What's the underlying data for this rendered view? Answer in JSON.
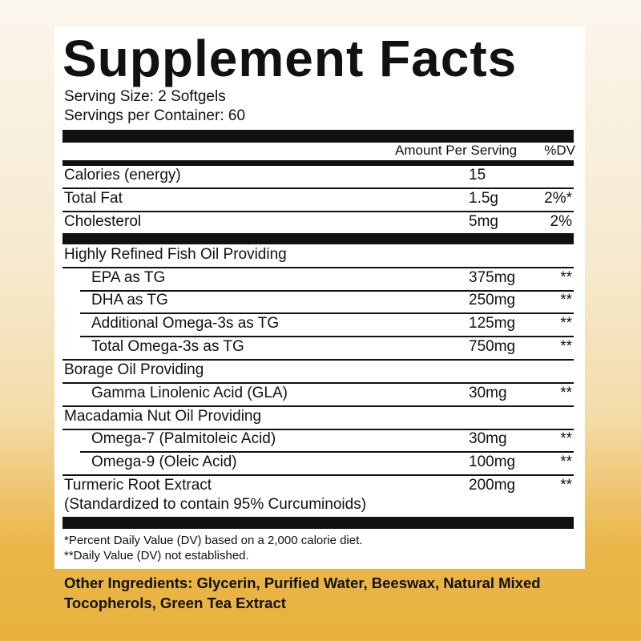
{
  "header": {
    "title": "Supplement Facts"
  },
  "serving": {
    "size": "Serving Size: 2 Softgels",
    "per_container": "Servings per Container: 60"
  },
  "table": {
    "header": {
      "amount": "Amount Per Serving",
      "dv": "%DV"
    },
    "rows": [
      {
        "label": "Calories (energy)",
        "amount": "15"
      },
      {
        "label": "Total Fat",
        "amount": "1.5g",
        "dv": "2%*"
      },
      {
        "label": "Cholesterol",
        "amount": "5mg",
        "dv": "2%"
      },
      {
        "label": "Highly Refined Fish Oil Providing"
      },
      {
        "label": "EPA as TG",
        "amount": "375mg",
        "dv": "**"
      },
      {
        "label": "DHA as TG",
        "amount": "250mg",
        "dv": "**"
      },
      {
        "label": "Additional Omega-3s as TG",
        "amount": "125mg",
        "dv": "**"
      },
      {
        "label": "Total Omega-3s as TG",
        "amount": "750mg",
        "dv": "**"
      },
      {
        "label": "Borage Oil Providing"
      },
      {
        "label": "Gamma Linolenic Acid (GLA)",
        "amount": "30mg",
        "dv": "**"
      },
      {
        "label": "Macadamia Nut Oil Providing"
      },
      {
        "label": "Omega-7 (Palmitoleic Acid)",
        "amount": "30mg",
        "dv": "**"
      },
      {
        "label": "Omega-9 (Oleic Acid)",
        "amount": "100mg",
        "dv": "**"
      },
      {
        "label": "Turmeric Root Extract",
        "note": "(Standardized to contain 95% Curcuminoids)",
        "amount": "200mg",
        "dv": "**"
      }
    ]
  },
  "footnotes": [
    "*Percent Daily Value (DV) based on a 2,000 calorie diet.",
    "**Daily Value (DV) not established."
  ],
  "other_ingredients": [
    "Other Ingredients: Glycerin, Purified Water, Beeswax, Natural Mixed",
    "Tocopherols, Green Tea Extract"
  ]
}
